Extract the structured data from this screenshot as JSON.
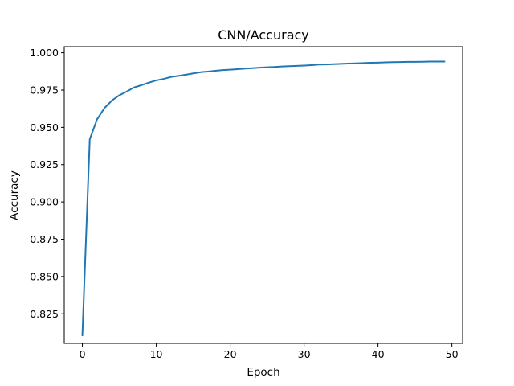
{
  "chart_data": {
    "type": "line",
    "title": "CNN/Accuracy",
    "xlabel": "Epoch",
    "ylabel": "Accuracy",
    "xlim": [
      -2.45,
      51.45
    ],
    "ylim": [
      0.8052,
      1.0041
    ],
    "xticks": [
      0,
      10,
      20,
      30,
      40,
      50
    ],
    "yticks": [
      0.825,
      0.85,
      0.875,
      0.9,
      0.925,
      0.95,
      0.975,
      1.0
    ],
    "grid": false,
    "legend": "none",
    "series": [
      {
        "color": "#1f77b4",
        "x": [
          0,
          1,
          2,
          3,
          4,
          5,
          6,
          7,
          8,
          9,
          10,
          11,
          12,
          13,
          14,
          15,
          16,
          17,
          18,
          19,
          20,
          21,
          22,
          23,
          24,
          25,
          26,
          27,
          28,
          29,
          30,
          31,
          32,
          33,
          34,
          35,
          36,
          37,
          38,
          39,
          40,
          41,
          42,
          43,
          44,
          45,
          46,
          47,
          48,
          49
        ],
        "y": [
          0.8105,
          0.942,
          0.9555,
          0.963,
          0.968,
          0.9715,
          0.974,
          0.9768,
          0.9783,
          0.98,
          0.9815,
          0.9825,
          0.9838,
          0.9845,
          0.9853,
          0.9862,
          0.987,
          0.9874,
          0.9879,
          0.9884,
          0.9887,
          0.989,
          0.9894,
          0.9897,
          0.99,
          0.9903,
          0.9905,
          0.9908,
          0.991,
          0.9912,
          0.9914,
          0.9917,
          0.9921,
          0.9922,
          0.9924,
          0.9926,
          0.9928,
          0.9929,
          0.9931,
          0.9933,
          0.9934,
          0.9936,
          0.9937,
          0.9938,
          0.9939,
          0.9939,
          0.994,
          0.9941,
          0.9941,
          0.9941
        ]
      }
    ]
  }
}
